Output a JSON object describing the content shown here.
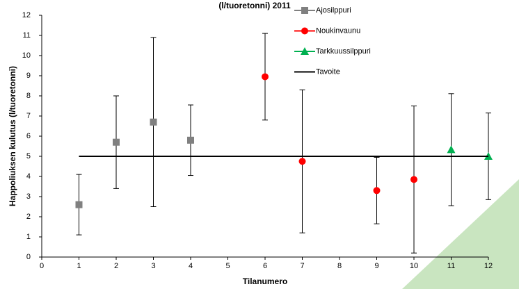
{
  "chart_data": {
    "type": "scatter",
    "title": "(l/tuoretonni) 2011",
    "x_label": "Tilanumero",
    "y_label": "Happoliuksen kulutus (l/tuoretonni)",
    "xlim": [
      0,
      12
    ],
    "ylim": [
      0,
      12
    ],
    "xticks": [
      0,
      1,
      2,
      3,
      4,
      5,
      6,
      7,
      8,
      9,
      10,
      11,
      12
    ],
    "yticks": [
      0,
      1,
      2,
      3,
      4,
      5,
      6,
      7,
      8,
      9,
      10,
      11,
      12
    ],
    "grid": false,
    "legend": "right",
    "series": [
      {
        "name": "Ajosilppuri",
        "color": "#808080",
        "marker": "square",
        "x": [
          1,
          2,
          3,
          4
        ],
        "values": [
          2.6,
          5.7,
          6.7,
          5.8
        ],
        "errors": [
          1.5,
          2.3,
          4.2,
          1.75
        ]
      },
      {
        "name": "Noukinvaunu",
        "color": "#ff0000",
        "marker": "circle",
        "x": [
          6,
          7,
          9,
          10
        ],
        "values": [
          8.95,
          4.75,
          3.3,
          3.85
        ],
        "errors": [
          2.15,
          3.55,
          1.65,
          3.65
        ]
      },
      {
        "name": "Tarkkuussilppuri",
        "color": "#00b050",
        "marker": "triangle",
        "x": [
          11,
          12
        ],
        "values": [
          5.33,
          5.0
        ],
        "errors": [
          2.78,
          2.15
        ]
      },
      {
        "name": "Tavoite",
        "color": "#000000",
        "marker": "line",
        "x": [
          1,
          12
        ],
        "values": [
          5,
          5
        ]
      }
    ]
  }
}
